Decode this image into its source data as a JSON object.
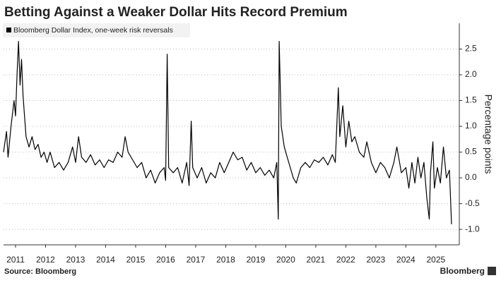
{
  "chart_data": {
    "type": "line",
    "title": "Betting Against a Weaker Dollar Hits Record Premium",
    "y_label": "Percentage points",
    "source": "Source: Bloomberg",
    "brand": "Bloomberg",
    "xlim": [
      2010.6,
      2025.78
    ],
    "xticks": [
      2011,
      2012,
      2013,
      2014,
      2015,
      2016,
      2017,
      2018,
      2019,
      2020,
      2021,
      2022,
      2023,
      2024,
      2025
    ],
    "ylim": [
      -1.3,
      3.0
    ],
    "yticks": [
      {
        "value": -1.0,
        "label": "-1.0"
      },
      -0.5,
      {
        "value": 0.0,
        "label": "0.0"
      },
      0.5,
      {
        "value": 1.0,
        "label": "1.0"
      },
      1.5,
      {
        "value": 2.0,
        "label": "2.0"
      },
      2.5
    ],
    "grid": true,
    "x": [
      2010.6,
      2010.7,
      2010.75,
      2010.85,
      2010.95,
      2011.0,
      2011.05,
      2011.1,
      2011.15,
      2011.2,
      2011.25,
      2011.3,
      2011.35,
      2011.45,
      2011.55,
      2011.65,
      2011.75,
      2011.85,
      2011.95,
      2012.05,
      2012.15,
      2012.3,
      2012.45,
      2012.6,
      2012.75,
      2012.9,
      2013.0,
      2013.1,
      2013.2,
      2013.35,
      2013.5,
      2013.65,
      2013.8,
      2013.95,
      2014.1,
      2014.25,
      2014.4,
      2014.55,
      2014.65,
      2014.75,
      2014.9,
      2015.05,
      2015.2,
      2015.35,
      2015.5,
      2015.65,
      2015.8,
      2015.95,
      2016.0,
      2016.05,
      2016.1,
      2016.25,
      2016.4,
      2016.55,
      2016.7,
      2016.78,
      2016.85,
      2016.9,
      2017.05,
      2017.2,
      2017.35,
      2017.5,
      2017.65,
      2017.8,
      2017.95,
      2018.1,
      2018.25,
      2018.4,
      2018.55,
      2018.7,
      2018.85,
      2019.0,
      2019.15,
      2019.3,
      2019.45,
      2019.6,
      2019.7,
      2019.75,
      2019.78,
      2019.85,
      2019.95,
      2020.05,
      2020.15,
      2020.25,
      2020.35,
      2020.5,
      2020.65,
      2020.8,
      2020.95,
      2021.1,
      2021.25,
      2021.4,
      2021.55,
      2021.65,
      2021.75,
      2021.8,
      2021.9,
      2022.0,
      2022.1,
      2022.2,
      2022.3,
      2022.45,
      2022.6,
      2022.7,
      2022.85,
      2023.0,
      2023.15,
      2023.3,
      2023.45,
      2023.6,
      2023.7,
      2023.85,
      2024.0,
      2024.1,
      2024.2,
      2024.3,
      2024.4,
      2024.5,
      2024.6,
      2024.7,
      2024.78,
      2024.82,
      2024.9,
      2024.95,
      2025.05,
      2025.15,
      2025.25,
      2025.35,
      2025.45,
      2025.48,
      2025.52
    ],
    "series": [
      {
        "name": "Bloomberg Dollar Index, one-week risk reversals",
        "color": "#000000",
        "values": [
          0.5,
          0.9,
          0.4,
          1.0,
          1.5,
          1.2,
          2.0,
          2.65,
          1.8,
          2.3,
          1.6,
          1.2,
          0.8,
          0.6,
          0.8,
          0.55,
          0.65,
          0.4,
          0.5,
          0.3,
          0.5,
          0.2,
          0.3,
          0.15,
          0.3,
          0.6,
          0.3,
          0.8,
          0.4,
          0.3,
          0.45,
          0.25,
          0.35,
          0.2,
          0.35,
          0.3,
          0.5,
          0.4,
          0.8,
          0.5,
          0.35,
          0.2,
          0.3,
          0.0,
          0.15,
          -0.1,
          0.1,
          0.2,
          -0.05,
          2.4,
          0.2,
          0.1,
          0.2,
          -0.1,
          0.3,
          -0.15,
          1.1,
          0.2,
          0.0,
          0.2,
          -0.1,
          0.1,
          0.0,
          0.3,
          0.1,
          0.3,
          0.5,
          0.35,
          0.4,
          0.15,
          0.3,
          0.1,
          0.2,
          0.05,
          0.15,
          0.0,
          0.3,
          -0.8,
          2.65,
          1.0,
          0.6,
          0.4,
          0.2,
          0.0,
          -0.1,
          0.2,
          0.3,
          0.2,
          0.35,
          0.3,
          0.4,
          0.25,
          0.45,
          0.3,
          1.75,
          0.8,
          1.4,
          0.6,
          1.1,
          0.7,
          0.8,
          0.5,
          0.4,
          0.7,
          0.3,
          0.1,
          0.3,
          0.2,
          0.0,
          0.3,
          0.6,
          0.1,
          0.2,
          -0.2,
          0.3,
          -0.1,
          0.4,
          0.0,
          0.3,
          -0.4,
          -0.8,
          0.1,
          0.7,
          -0.2,
          0.2,
          -0.1,
          0.6,
          0.0,
          0.15,
          -0.3,
          -0.9
        ]
      }
    ]
  }
}
